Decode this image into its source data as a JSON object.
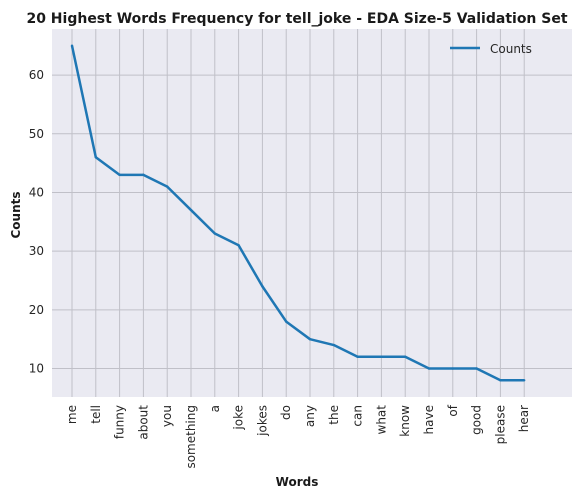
{
  "chart_data": {
    "type": "line",
    "title": "20 Highest Words Frequency for tell_joke - EDA Size-5 Validation Set",
    "xlabel": "Words",
    "ylabel": "Counts",
    "categories": [
      "me",
      "tell",
      "funny",
      "about",
      "you",
      "something",
      "a",
      "joke",
      "jokes",
      "do",
      "any",
      "the",
      "can",
      "what",
      "know",
      "have",
      "of",
      "good",
      "please",
      "hear"
    ],
    "series": [
      {
        "name": "Counts",
        "values": [
          65,
          46,
          43,
          43,
          41,
          37,
          33,
          31,
          24,
          18,
          15,
          14,
          12,
          12,
          12,
          10,
          10,
          10,
          8,
          8
        ]
      }
    ],
    "yticks": [
      10,
      20,
      30,
      40,
      50,
      60
    ],
    "ylim": [
      5.15,
      67.85
    ],
    "grid": true,
    "legend_position": "top-right",
    "colors": {
      "line": "#1f77b4",
      "background": "#eaeaf2",
      "grid": "#c0c0c8"
    }
  }
}
